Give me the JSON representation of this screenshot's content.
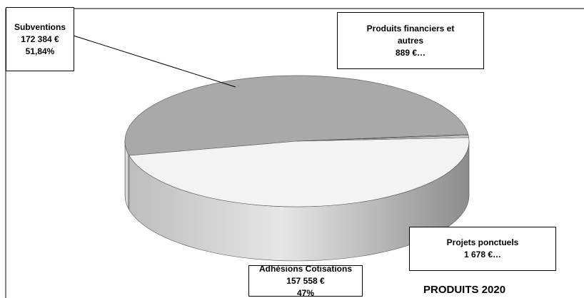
{
  "chart_data": {
    "type": "pie3d",
    "title": "PRODUITS 2020",
    "categories": [
      "Subventions",
      "Adhésions Cotisations",
      "Projets ponctuels",
      "Produits financiers et autres"
    ],
    "values": [
      172384,
      157558,
      1678,
      889
    ],
    "value_labels": [
      "172 384 €",
      "157 558 €",
      "1 678 €…",
      "889 €…"
    ],
    "percent_labels": [
      "51,84%",
      "47%",
      null,
      null
    ],
    "colors": [
      "#a9a9a9",
      "#f3f3f3",
      "#d6d6d6",
      "#bcbcbc"
    ]
  }
}
